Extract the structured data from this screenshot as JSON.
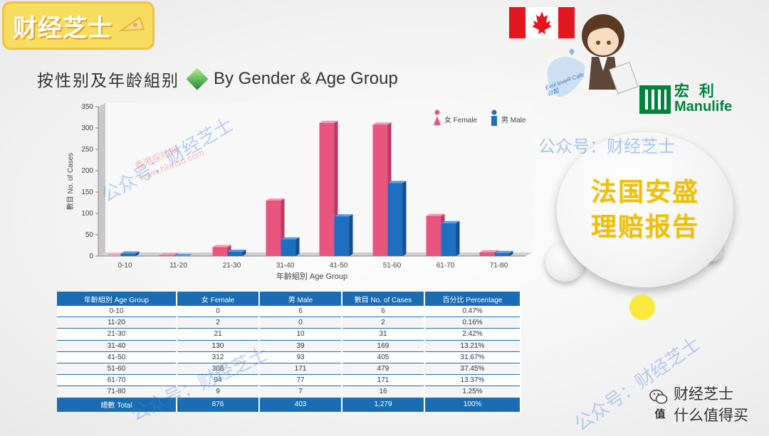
{
  "brand": {
    "label": "财经芝士"
  },
  "logo": {
    "zh": "宏 利",
    "en": "Manulife"
  },
  "chibi_caption": "Evol loveR Cafe 白起",
  "title": {
    "zh": "按性别及年龄組别",
    "en": "By Gender & Age Group"
  },
  "bubble": {
    "line1": "法国安盛",
    "line2": "理赔报告"
  },
  "watermarks": {
    "primary": "公众号：财经芝士",
    "secondary_line1": "香港保险网",
    "secondary_line2": "www.hkinsu.com"
  },
  "bottom_brand": {
    "line1": "财经芝士",
    "line2": "什么值得买"
  },
  "chart_data": {
    "type": "bar",
    "categories": [
      "0-10",
      "11-20",
      "21-30",
      "31-40",
      "41-50",
      "51-60",
      "61-70",
      "71-80"
    ],
    "series": [
      {
        "name": "女 Female",
        "color": "#e8557f",
        "values": [
          0,
          2,
          21,
          130,
          312,
          308,
          94,
          9
        ]
      },
      {
        "name": "男 Male",
        "color": "#1f6fc0",
        "values": [
          6,
          0,
          10,
          39,
          93,
          171,
          77,
          7
        ]
      }
    ],
    "xlabel": "年齡組別 Age Group",
    "ylabel": "數目 No. of Cases",
    "ylim": [
      0,
      350
    ],
    "yticks": [
      0,
      50,
      100,
      150,
      200,
      250,
      300,
      350
    ],
    "grid": false,
    "legend_position": "top-right"
  },
  "table": {
    "headers": [
      "年齡組別 Age Group",
      "女 Female",
      "男 Male",
      "數目 No. of Cases",
      "百分比 Percentage"
    ],
    "rows": [
      [
        "0-10",
        "0",
        "6",
        "6",
        "0.47%"
      ],
      [
        "11-20",
        "2",
        "0",
        "2",
        "0.16%"
      ],
      [
        "21-30",
        "21",
        "10",
        "31",
        "2.42%"
      ],
      [
        "31-40",
        "130",
        "39",
        "169",
        "13.21%"
      ],
      [
        "41-50",
        "312",
        "93",
        "405",
        "31.67%"
      ],
      [
        "51-60",
        "308",
        "171",
        "479",
        "37.45%"
      ],
      [
        "61-70",
        "94",
        "77",
        "171",
        "13.37%"
      ],
      [
        "71-80",
        "9",
        "7",
        "16",
        "1.25%"
      ]
    ],
    "total": [
      "總數 Total",
      "876",
      "403",
      "1,279",
      "100%"
    ]
  }
}
